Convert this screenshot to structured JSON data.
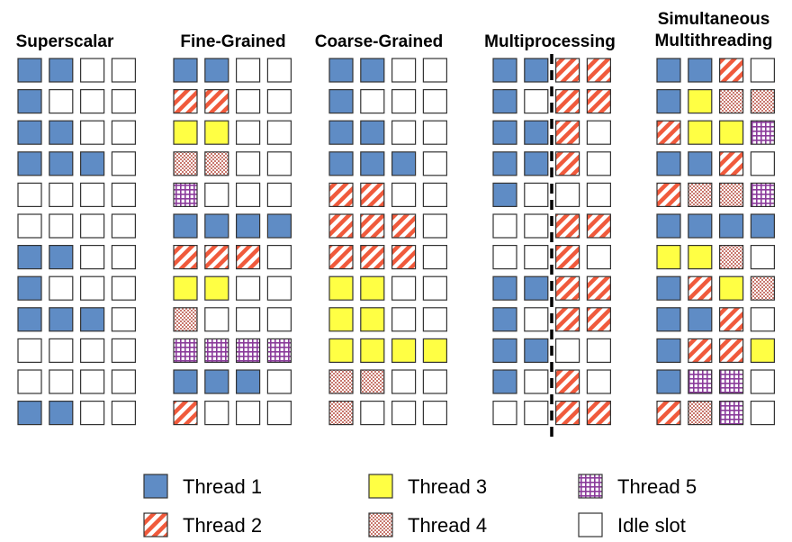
{
  "thread_colors": {
    "t1": "#5f8cc5",
    "t2": "#f05a3c",
    "t3": "#ffff44",
    "t4": "#c8786e",
    "t5": "#8a3a9a",
    "idle": "#ffffff"
  },
  "panels": [
    {
      "title": [
        "Superscalar"
      ],
      "grid": [
        [
          "t1",
          "t1",
          "idle",
          "idle"
        ],
        [
          "t1",
          "idle",
          "idle",
          "idle"
        ],
        [
          "t1",
          "t1",
          "idle",
          "idle"
        ],
        [
          "t1",
          "t1",
          "t1",
          "idle"
        ],
        [
          "idle",
          "idle",
          "idle",
          "idle"
        ],
        [
          "idle",
          "idle",
          "idle",
          "idle"
        ],
        [
          "t1",
          "t1",
          "idle",
          "idle"
        ],
        [
          "t1",
          "idle",
          "idle",
          "idle"
        ],
        [
          "t1",
          "t1",
          "t1",
          "idle"
        ],
        [
          "idle",
          "idle",
          "idle",
          "idle"
        ],
        [
          "idle",
          "idle",
          "idle",
          "idle"
        ],
        [
          "t1",
          "t1",
          "idle",
          "idle"
        ]
      ]
    },
    {
      "title": [
        "Fine-Grained"
      ],
      "grid": [
        [
          "t1",
          "t1",
          "idle",
          "idle"
        ],
        [
          "t2",
          "t2",
          "idle",
          "idle"
        ],
        [
          "t3",
          "t3",
          "idle",
          "idle"
        ],
        [
          "t4",
          "t4",
          "idle",
          "idle"
        ],
        [
          "t5",
          "idle",
          "idle",
          "idle"
        ],
        [
          "t1",
          "t1",
          "t1",
          "t1"
        ],
        [
          "t2",
          "t2",
          "t2",
          "idle"
        ],
        [
          "t3",
          "t3",
          "idle",
          "idle"
        ],
        [
          "t4",
          "idle",
          "idle",
          "idle"
        ],
        [
          "t5",
          "t5",
          "t5",
          "t5"
        ],
        [
          "t1",
          "t1",
          "t1",
          "idle"
        ],
        [
          "t2",
          "idle",
          "idle",
          "idle"
        ]
      ]
    },
    {
      "title": [
        "Coarse-Grained"
      ],
      "grid": [
        [
          "t1",
          "t1",
          "idle",
          "idle"
        ],
        [
          "t1",
          "idle",
          "idle",
          "idle"
        ],
        [
          "t1",
          "t1",
          "idle",
          "idle"
        ],
        [
          "t1",
          "t1",
          "t1",
          "idle"
        ],
        [
          "t2",
          "t2",
          "idle",
          "idle"
        ],
        [
          "t2",
          "t2",
          "t2",
          "idle"
        ],
        [
          "t2",
          "t2",
          "t2",
          "idle"
        ],
        [
          "t3",
          "t3",
          "idle",
          "idle"
        ],
        [
          "t3",
          "t3",
          "idle",
          "idle"
        ],
        [
          "t3",
          "t3",
          "t3",
          "t3"
        ],
        [
          "t4",
          "t4",
          "idle",
          "idle"
        ],
        [
          "t4",
          "idle",
          "idle",
          "idle"
        ]
      ]
    },
    {
      "title": [
        "Multiprocessing"
      ],
      "divider": true,
      "grid": [
        [
          "t1",
          "t1",
          "t2",
          "t2"
        ],
        [
          "t1",
          "idle",
          "t2",
          "t2"
        ],
        [
          "t1",
          "t1",
          "t2",
          "idle"
        ],
        [
          "t1",
          "t1",
          "t2",
          "idle"
        ],
        [
          "t1",
          "idle",
          "idle",
          "idle"
        ],
        [
          "idle",
          "idle",
          "t2",
          "t2"
        ],
        [
          "idle",
          "idle",
          "t2",
          "idle"
        ],
        [
          "t1",
          "t1",
          "t2",
          "t2"
        ],
        [
          "t1",
          "idle",
          "t2",
          "t2"
        ],
        [
          "t1",
          "t1",
          "idle",
          "idle"
        ],
        [
          "t1",
          "idle",
          "t2",
          "idle"
        ],
        [
          "idle",
          "idle",
          "t2",
          "t2"
        ]
      ]
    },
    {
      "title": [
        "Simultaneous",
        "Multithreading"
      ],
      "grid": [
        [
          "t1",
          "t1",
          "t2",
          "idle"
        ],
        [
          "t1",
          "t3",
          "t4",
          "t4"
        ],
        [
          "t2",
          "t3",
          "t3",
          "t5"
        ],
        [
          "t1",
          "t1",
          "t2",
          "idle"
        ],
        [
          "t2",
          "t4",
          "t4",
          "t5"
        ],
        [
          "t1",
          "t1",
          "t1",
          "t1"
        ],
        [
          "t3",
          "t3",
          "t4",
          "idle"
        ],
        [
          "t1",
          "t2",
          "t3",
          "t4"
        ],
        [
          "t1",
          "t1",
          "t2",
          "idle"
        ],
        [
          "t1",
          "t2",
          "t2",
          "t3"
        ],
        [
          "t1",
          "t5",
          "t5",
          "idle"
        ],
        [
          "t2",
          "t4",
          "t5",
          "idle"
        ]
      ]
    }
  ],
  "legend": [
    {
      "key": "t1",
      "label": "Thread 1"
    },
    {
      "key": "t2",
      "label": "Thread 2"
    },
    {
      "key": "t3",
      "label": "Thread 3"
    },
    {
      "key": "t4",
      "label": "Thread 4"
    },
    {
      "key": "t5",
      "label": "Thread 5"
    },
    {
      "key": "idle",
      "label": "Idle slot"
    }
  ]
}
